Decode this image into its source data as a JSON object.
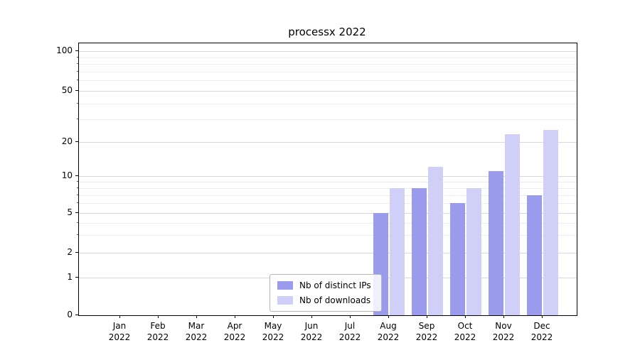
{
  "chart_data": {
    "type": "bar",
    "title": "processx 2022",
    "xlabel": "",
    "ylabel": "",
    "grid": true,
    "yscale": "symlog",
    "categories": [
      "Jan",
      "Feb",
      "Mar",
      "Apr",
      "May",
      "Jun",
      "Jul",
      "Aug",
      "Sep",
      "Oct",
      "Nov",
      "Dec"
    ],
    "xtick_year": "2022",
    "series": [
      {
        "name": "Nb of distinct IPs",
        "color": "#9b9bee",
        "values": [
          0,
          0,
          0,
          0,
          0,
          0,
          0,
          5,
          8,
          6,
          11,
          7
        ]
      },
      {
        "name": "Nb of downloads",
        "color": "#cfcff7",
        "values": [
          0,
          0,
          0,
          0,
          0,
          0,
          0,
          8,
          12,
          8,
          23,
          25
        ]
      }
    ],
    "yticks": [
      0,
      1,
      2,
      5,
      10,
      20,
      50,
      100
    ],
    "gridline_values": [
      1,
      2,
      3,
      4,
      5,
      6,
      7,
      8,
      9,
      10,
      20,
      30,
      40,
      50,
      60,
      70,
      80,
      90,
      100
    ],
    "scale_anchors": {
      "values": [
        0,
        1,
        2,
        5,
        10,
        20,
        50,
        100
      ],
      "fractions": [
        0.0,
        0.138,
        0.23,
        0.376,
        0.512,
        0.637,
        0.825,
        0.971
      ]
    },
    "legend": {
      "position": "lower center"
    }
  }
}
